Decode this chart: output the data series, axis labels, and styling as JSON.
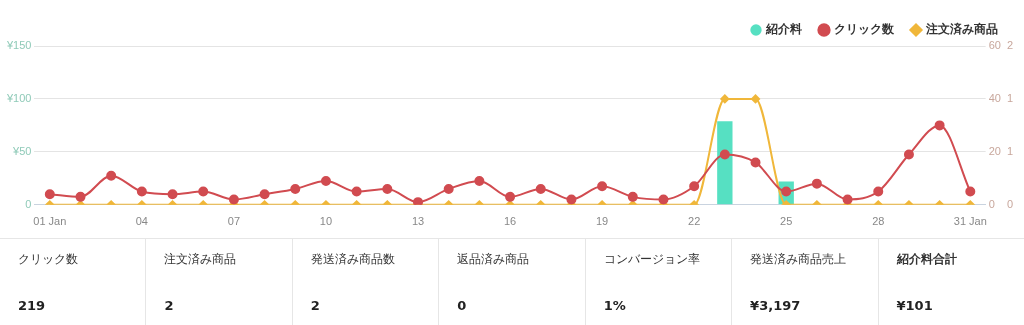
{
  "chart_data": [
    {
      "type": "bar",
      "categories": [
        "01 Jan",
        null,
        null,
        "04",
        null,
        null,
        "07",
        null,
        null,
        "10",
        null,
        null,
        "13",
        null,
        null,
        "16",
        null,
        null,
        "19",
        null,
        null,
        "22",
        null,
        null,
        "25",
        null,
        null,
        "28",
        null,
        null,
        "31 Jan"
      ],
      "series": [
        {
          "name": "紹介料",
          "type": "bar",
          "color": "#56e0c2",
          "axis": "y",
          "values": [
            0,
            0,
            0,
            0,
            0,
            0,
            0,
            0,
            0,
            0,
            0,
            0,
            0,
            0,
            0,
            0,
            0,
            0,
            0,
            0,
            0,
            0,
            79,
            0,
            22,
            0,
            0,
            0,
            0,
            0,
            0
          ]
        },
        {
          "name": "クリック数",
          "type": "line",
          "color": "#d14b50",
          "axis": "y2",
          "marker": "circle",
          "values": [
            4,
            3,
            11,
            5,
            4,
            5,
            2,
            4,
            6,
            9,
            5,
            6,
            1,
            6,
            9,
            3,
            6,
            2,
            7,
            3,
            2,
            7,
            19,
            16,
            5,
            8,
            2,
            5,
            19,
            30,
            5
          ]
        },
        {
          "name": "注文済み商品",
          "type": "line",
          "color": "#f0b73a",
          "axis": "y3",
          "marker": "diamond",
          "values": [
            0,
            0,
            0,
            0,
            0,
            0,
            0,
            0,
            0,
            0,
            0,
            0,
            0,
            0,
            0,
            0,
            0,
            0,
            0,
            0,
            0,
            0,
            1,
            1,
            0,
            0,
            0,
            0,
            0,
            0,
            0
          ]
        }
      ],
      "ylim": [
        0,
        150
      ],
      "yticks": [
        0,
        {
          "value": 50,
          "label": "¥50"
        },
        {
          "value": 100,
          "label": "¥100"
        },
        {
          "value": 150,
          "label": "¥150"
        }
      ],
      "y2lim": [
        0,
        60
      ],
      "y2ticks": [
        0,
        20,
        40,
        60
      ],
      "y3lim": [
        0,
        1.5
      ],
      "y3ticks": [
        0,
        {
          "value": 0.5,
          "label": "1"
        },
        {
          "value": 1,
          "label": "1"
        },
        {
          "value": 1.5,
          "label": "2"
        }
      ],
      "grid": "y",
      "legend": "top right"
    },
    {
      "type": "other",
      "categories": [
        "クリック数",
        "注文済み商品",
        "発送済み商品数",
        "返品済み商品",
        "コンバージョン率",
        "発送済み商品売上",
        "紹介料合計"
      ],
      "annotations": [
        "219",
        "2",
        "2",
        "0",
        "1%",
        "¥3,197",
        "¥101"
      ]
    }
  ]
}
